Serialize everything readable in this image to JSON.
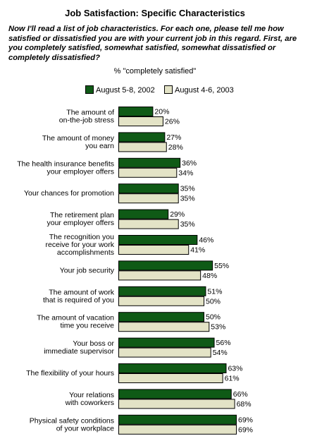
{
  "chart_data": {
    "type": "bar",
    "orientation": "horizontal",
    "title": "Job Satisfaction: Specific Characteristics",
    "question": "Now I'll read a list of job characteristics. For each one, please tell me how satisfied or dissatisfied you are with your current job in this regard. First, are you completely satisfied, somewhat satisfied, somewhat dissatisfied or completely dissatisfied?",
    "subtitle": "% \"completely satisfied\"",
    "legend_position": "top",
    "categories": [
      [
        "The amount of",
        "on-the-job stress"
      ],
      [
        "The amount of money",
        "you earn"
      ],
      [
        "The health insurance benefits",
        "your employer offers"
      ],
      [
        "Your chances for promotion"
      ],
      [
        "The retirement plan",
        "your employer offers"
      ],
      [
        "The recognition you",
        "receive for your work",
        "accomplishments"
      ],
      [
        "Your job security"
      ],
      [
        "The amount of work",
        "that is required of you"
      ],
      [
        "The amount of vacation",
        "time you receive"
      ],
      [
        "Your boss or",
        "immediate supervisor"
      ],
      [
        "The flexibility of your hours"
      ],
      [
        "Your relations",
        "with coworkers"
      ],
      [
        "Physical safety conditions",
        "of your workplace"
      ]
    ],
    "series": [
      {
        "name": "August 5-8, 2002",
        "color": "#0f5a16",
        "values": [
          20,
          27,
          36,
          35,
          29,
          46,
          55,
          51,
          50,
          56,
          63,
          66,
          69
        ]
      },
      {
        "name": "August 4-6, 2003",
        "color": "#e3e3c6",
        "values": [
          26,
          28,
          34,
          35,
          35,
          41,
          48,
          50,
          53,
          54,
          61,
          68,
          69
        ]
      }
    ],
    "value_suffix": "%",
    "xlim": [
      0,
      69
    ],
    "grid": false
  }
}
